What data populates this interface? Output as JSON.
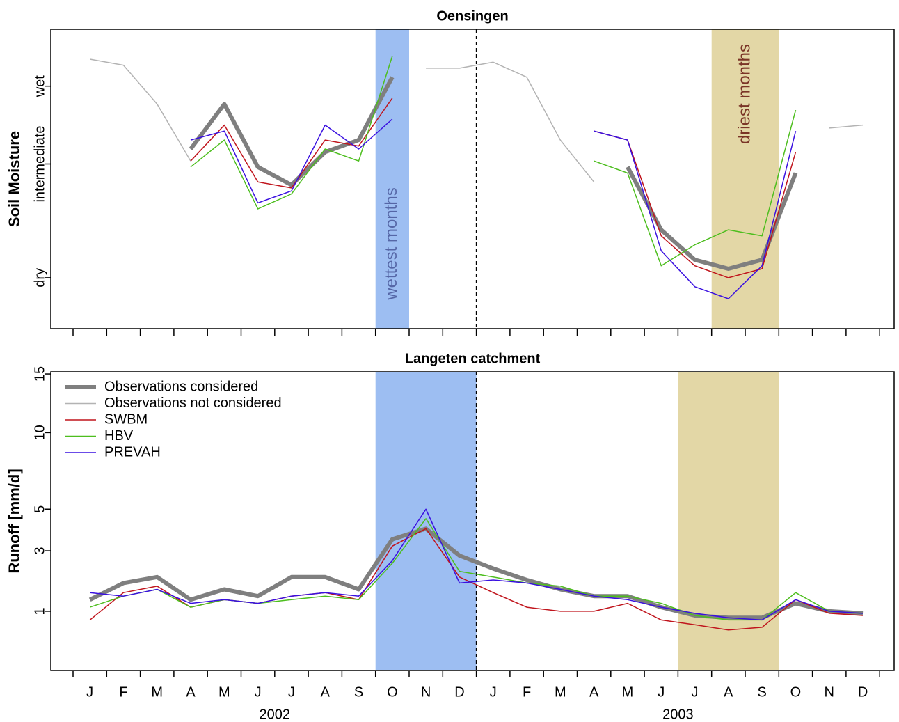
{
  "chart_data": [
    {
      "type": "line",
      "title": "Oensingen",
      "ylabel": "Soil Moisture",
      "ylim": [
        0,
        100
      ],
      "yticks": [
        {
          "value": 17,
          "label": "dry"
        },
        {
          "value": 55,
          "label": "intermediate"
        },
        {
          "value": 81,
          "label": "wet"
        }
      ],
      "bands": [
        {
          "label": "wettest months",
          "span": [
            9,
            10
          ],
          "color": "#9dbef2",
          "text_color": "#5566a6"
        },
        {
          "label": "driest months",
          "span": [
            19,
            21
          ],
          "color": "#e3d7a6",
          "text_color": "#7a3426"
        }
      ],
      "divider": 12,
      "series": [
        {
          "name": "Observations considered",
          "color": "#7f7f7f",
          "width": 6,
          "values": [
            null,
            null,
            null,
            60,
            75,
            54,
            48,
            59,
            63,
            84,
            null,
            null,
            null,
            null,
            null,
            null,
            54,
            33,
            23,
            20,
            23,
            52,
            null,
            null
          ]
        },
        {
          "name": "Observations not considered",
          "color": "#b3b3b3",
          "width": 1.5,
          "values": [
            90,
            88,
            75,
            56,
            null,
            null,
            null,
            null,
            null,
            null,
            87,
            87,
            89,
            84,
            63,
            49,
            null,
            null,
            null,
            null,
            null,
            null,
            67,
            68
          ]
        },
        {
          "name": "SWBM",
          "color": "#c0141c",
          "width": 1.5,
          "values": [
            null,
            null,
            null,
            56,
            68,
            49,
            47,
            63,
            61,
            77,
            null,
            null,
            null,
            null,
            null,
            66,
            63,
            31,
            21,
            17,
            20,
            59,
            null,
            null
          ]
        },
        {
          "name": "HBV",
          "color": "#4dbe1e",
          "width": 1.5,
          "values": [
            null,
            null,
            null,
            54,
            63,
            40,
            45,
            60,
            56,
            91,
            null,
            null,
            null,
            null,
            null,
            56,
            52,
            21,
            28,
            33,
            31,
            73,
            null,
            null
          ]
        },
        {
          "name": "PREVAH",
          "color": "#3a10e0",
          "width": 1.5,
          "values": [
            null,
            null,
            null,
            63,
            66,
            42,
            46,
            68,
            60,
            70,
            null,
            null,
            null,
            null,
            null,
            66,
            63,
            26,
            14,
            10,
            21,
            66,
            null,
            null
          ]
        }
      ]
    },
    {
      "type": "line",
      "title": "Langeten catchment",
      "ylabel": "Runoff [mm/d]",
      "yscale": "sqrt",
      "ylim": [
        0.08,
        15.2
      ],
      "yticks": [
        1,
        3,
        5,
        10,
        15
      ],
      "legend": "top-left",
      "categories": [
        "J",
        "F",
        "M",
        "A",
        "M",
        "J",
        "J",
        "A",
        "S",
        "O",
        "N",
        "D",
        "J",
        "F",
        "M",
        "A",
        "M",
        "J",
        "J",
        "A",
        "S",
        "O",
        "N",
        "D"
      ],
      "years": [
        "2002",
        "2003"
      ],
      "bands": [
        {
          "span": [
            9,
            12
          ],
          "color": "#9dbef2"
        },
        {
          "span": [
            18,
            21
          ],
          "color": "#e3d7a6"
        }
      ],
      "divider": 12,
      "series": [
        {
          "name": "Observations considered",
          "color": "#7f7f7f",
          "width": 6,
          "values": [
            1.3,
            1.8,
            2.0,
            1.3,
            1.6,
            1.4,
            2.0,
            2.0,
            1.6,
            3.5,
            4.0,
            2.8,
            2.3,
            1.9,
            1.6,
            1.4,
            1.4,
            1.1,
            0.9,
            0.85,
            0.85,
            1.2,
            1.0,
            0.95
          ]
        },
        {
          "name": "SWBM",
          "color": "#c0141c",
          "width": 1.5,
          "values": [
            0.8,
            1.5,
            1.7,
            1.1,
            1.3,
            1.2,
            1.4,
            1.5,
            1.3,
            3.2,
            4.0,
            2.0,
            1.5,
            1.1,
            1.0,
            1.0,
            1.2,
            0.8,
            0.7,
            0.6,
            0.65,
            1.3,
            0.95,
            0.9
          ]
        },
        {
          "name": "HBV",
          "color": "#4dbe1e",
          "width": 1.5,
          "values": [
            1.1,
            1.4,
            1.6,
            1.1,
            1.3,
            1.2,
            1.3,
            1.4,
            1.3,
            2.5,
            4.5,
            2.2,
            2.0,
            1.8,
            1.7,
            1.4,
            1.4,
            1.2,
            0.9,
            0.8,
            0.8,
            1.5,
            1.0,
            0.95
          ]
        },
        {
          "name": "PREVAH",
          "color": "#3a10e0",
          "width": 1.5,
          "values": [
            1.5,
            1.4,
            1.6,
            1.2,
            1.3,
            1.2,
            1.4,
            1.5,
            1.4,
            2.6,
            5.0,
            1.8,
            1.9,
            1.8,
            1.6,
            1.4,
            1.3,
            1.1,
            0.95,
            0.85,
            0.8,
            1.3,
            1.0,
            0.95
          ]
        }
      ]
    }
  ]
}
